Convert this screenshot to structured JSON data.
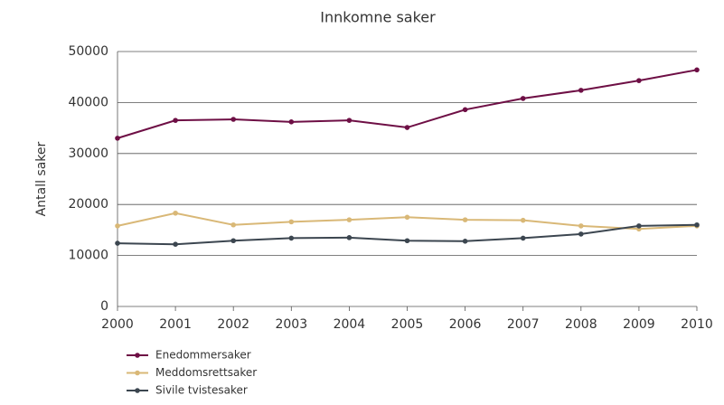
{
  "chart_data": {
    "type": "line",
    "title": "Innkomne saker",
    "y_label": "Antall saker",
    "x": [
      2000,
      2001,
      2002,
      2003,
      2004,
      2005,
      2006,
      2007,
      2008,
      2009,
      2010
    ],
    "series": [
      {
        "name": "Enedommersaker",
        "color": "#6e0f45",
        "values": [
          33000,
          36500,
          36700,
          36200,
          36500,
          35100,
          38600,
          40800,
          42400,
          44300,
          46400
        ]
      },
      {
        "name": "Meddomsrettsaker",
        "color": "#d9b877",
        "values": [
          15800,
          18300,
          16000,
          16600,
          17000,
          17500,
          17000,
          16900,
          15800,
          15200,
          15800
        ]
      },
      {
        "name": "Sivile tvistesaker",
        "color": "#3c4650",
        "values": [
          12400,
          12200,
          12900,
          13400,
          13500,
          12900,
          12800,
          13400,
          14200,
          15800,
          16000
        ]
      }
    ],
    "xlim": [
      2000,
      2010
    ],
    "xticks": [
      2000,
      2001,
      2002,
      2003,
      2004,
      2005,
      2006,
      2007,
      2008,
      2009,
      2010
    ],
    "ylim": [
      0,
      50000
    ],
    "yticks": [
      0,
      10000,
      20000,
      30000,
      40000,
      50000
    ],
    "grid": true,
    "legend": "bottom-left"
  }
}
